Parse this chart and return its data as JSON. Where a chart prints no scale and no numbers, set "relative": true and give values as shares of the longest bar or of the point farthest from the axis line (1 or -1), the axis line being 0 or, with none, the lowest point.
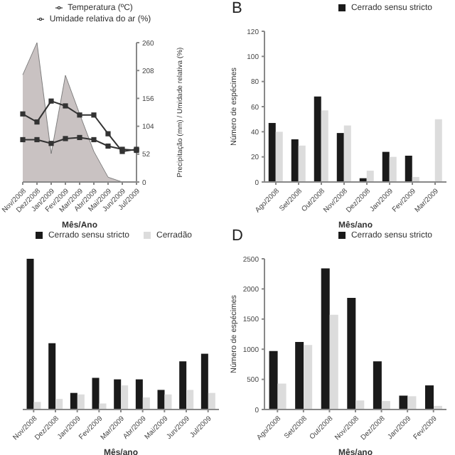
{
  "chart_data": [
    {
      "type": "line",
      "categories": [
        "Nov/2008",
        "Dez/2008",
        "Jan/2009",
        "Fev/2009",
        "Mar/2009",
        "Abr/2009",
        "Mai/2009",
        "Jun/2009",
        "Jul/2009"
      ],
      "xlabel": "Mês/Ano",
      "y2label": "Precipitação (mm) / Umidade relativa (%)",
      "y2lim": [
        0,
        260
      ],
      "y2ticks": [
        0,
        52,
        104,
        156,
        208,
        260
      ],
      "legend": "top",
      "line_style": "solid",
      "series": [
        {
          "type": "area",
          "axis": "y2",
          "marker": "none",
          "color": "#c9c2c2",
          "values": [
            200,
            260,
            53,
            199,
            127,
            57,
            9,
            0,
            0
          ]
        },
        {
          "axis": "y2",
          "marker": "square",
          "name": "Temperatura (ºC)",
          "color": "#333333",
          "values": [
            79,
            79,
            72,
            81,
            83,
            79,
            67,
            61,
            59
          ]
        },
        {
          "axis": "y2",
          "marker": "square",
          "name": "Umidade relativa do ar (%)",
          "color": "#333333",
          "values": [
            127,
            112,
            151,
            142,
            125,
            125,
            90,
            57,
            61
          ]
        }
      ]
    },
    {
      "type": "bar",
      "title": "B",
      "categories": [
        "Ago/2008",
        "Set/2008",
        "Out/2008",
        "Nov/2008",
        "Dez/2008",
        "Jan/2009",
        "Fev/2009",
        "Mar/2009"
      ],
      "xlabel": "Mês/ano",
      "ylabel": "Número de espécimes",
      "ylim": [
        0,
        120
      ],
      "yticks": [
        0,
        20,
        40,
        60,
        80,
        100,
        120
      ],
      "legend": "top right",
      "series": [
        {
          "name": "Cerrado sensu stricto",
          "color": "#1a1a1a",
          "values": [
            47,
            34,
            68,
            39,
            3,
            24,
            21,
            null
          ]
        },
        {
          "color": "#dcdcdc",
          "values": [
            40,
            29,
            57,
            45,
            9,
            20,
            4,
            50
          ]
        }
      ]
    },
    {
      "type": "bar",
      "relative": true,
      "categories": [
        "Nov/2008",
        "Dez/2008",
        "Jan/2009",
        "Fev/2009",
        "Mar/2009",
        "Abr/2009",
        "Mai/2009",
        "Jun/2009",
        "Jul/2009"
      ],
      "xlabel": "Mês/ano",
      "legend": "top",
      "series": [
        {
          "name": "Cerrado sensu stricto",
          "color": "#1a1a1a",
          "values": [
            1,
            0.44,
            0.11,
            0.21,
            0.2,
            0.2,
            0.13,
            0.32,
            0.37
          ]
        },
        {
          "name": "Cerradão",
          "color": "#dcdcdc",
          "values": [
            0.05,
            0.07,
            0.1,
            0.04,
            0.16,
            0.08,
            0.1,
            0.13,
            0.11
          ]
        }
      ]
    },
    {
      "type": "bar",
      "title": "D",
      "categories": [
        "Ago/2008",
        "Set/2008",
        "Out/2008",
        "Nov/2008",
        "Dez/2008",
        "Jan/2009",
        "Fev/2009"
      ],
      "xlabel": "Mês/ano",
      "ylabel": "Número de espécimes",
      "ylim": [
        0,
        2500
      ],
      "yticks": [
        0,
        500,
        1000,
        1500,
        2000,
        2500
      ],
      "legend": "top right",
      "series": [
        {
          "name": "Cerrado sensu stricto",
          "color": "#1a1a1a",
          "values": [
            970,
            1120,
            2340,
            1850,
            800,
            230,
            400
          ]
        },
        {
          "color": "#dcdcdc",
          "values": [
            430,
            1070,
            1570,
            150,
            140,
            220,
            60
          ]
        }
      ]
    }
  ]
}
